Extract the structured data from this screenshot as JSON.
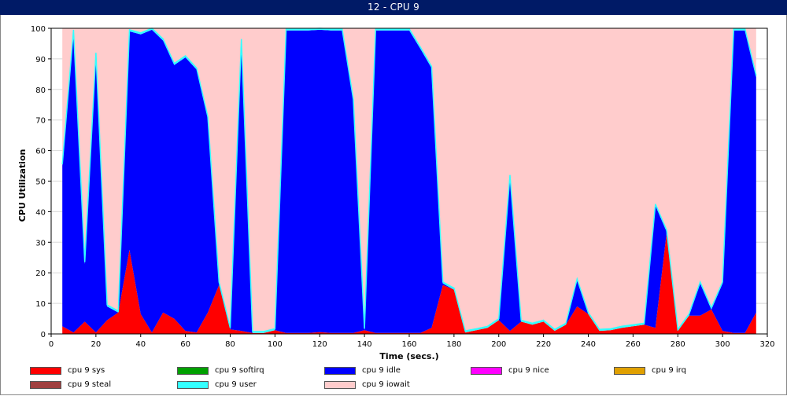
{
  "window": {
    "title": "12 - CPU 9"
  },
  "chart_data": {
    "type": "area",
    "stacked": true,
    "title": "",
    "xlabel": "Time (secs.)",
    "ylabel": "CPU Utilization",
    "xlim": [
      0,
      320
    ],
    "ylim": [
      0,
      100
    ],
    "xticks": [
      0,
      20,
      40,
      60,
      80,
      100,
      120,
      140,
      160,
      180,
      200,
      220,
      240,
      260,
      280,
      300,
      320
    ],
    "yticks": [
      0,
      10,
      20,
      30,
      40,
      50,
      60,
      70,
      80,
      90,
      100
    ],
    "grid": true,
    "legend_position": "bottom",
    "x": [
      5,
      10,
      15,
      20,
      25,
      30,
      35,
      40,
      45,
      50,
      55,
      60,
      65,
      70,
      75,
      80,
      85,
      90,
      95,
      100,
      105,
      110,
      115,
      120,
      125,
      130,
      135,
      140,
      145,
      150,
      155,
      160,
      165,
      170,
      175,
      180,
      185,
      190,
      195,
      200,
      205,
      210,
      215,
      220,
      225,
      230,
      235,
      240,
      245,
      250,
      255,
      260,
      265,
      270,
      275,
      280,
      285,
      290,
      295,
      300,
      305,
      310,
      315
    ],
    "series": [
      {
        "name": "cpu 9 sys",
        "color": "#ff0000",
        "values": [
          2.5,
          0.5,
          4,
          0.5,
          4.5,
          7,
          27.5,
          6.5,
          0.5,
          7,
          5,
          1,
          0.5,
          7,
          16,
          1.5,
          1,
          0.3,
          0.3,
          1.2,
          0.3,
          0.3,
          0.3,
          0.6,
          0.3,
          0.3,
          0.3,
          1.2,
          0.3,
          0.3,
          0.3,
          0.3,
          0.3,
          2,
          16,
          14.5,
          0.5,
          1.2,
          2,
          4.5,
          1,
          4,
          3,
          4,
          1,
          3,
          9,
          6.5,
          1,
          1.2,
          2,
          2.5,
          3,
          2,
          33,
          1,
          6,
          6,
          8,
          1,
          0.3,
          0.3,
          7
        ]
      },
      {
        "name": "cpu 9 softirq",
        "color": "#00a000",
        "values": [
          0,
          0,
          0,
          0,
          0,
          0,
          0,
          0,
          0,
          0,
          0,
          0,
          0,
          0,
          0,
          0,
          0,
          0,
          0,
          0,
          0,
          0,
          0,
          0,
          0,
          0,
          0,
          0,
          0,
          0,
          0,
          0,
          0,
          0,
          0,
          0,
          0,
          0,
          0,
          0,
          0,
          0,
          0,
          0,
          0,
          0,
          0,
          0,
          0,
          0,
          0,
          0,
          0,
          0,
          0,
          0,
          0,
          0,
          0,
          0,
          0,
          0,
          0
        ]
      },
      {
        "name": "cpu 9 idle",
        "color": "#0000ff",
        "values": [
          52.5,
          98.5,
          19,
          91,
          4.5,
          0,
          71.5,
          91.5,
          99,
          89,
          83,
          89.5,
          86,
          63.5,
          0.5,
          0,
          95,
          0,
          0,
          0,
          99,
          99,
          99,
          98.9,
          99,
          99,
          76,
          0,
          99,
          99,
          99,
          99,
          93,
          85,
          0.5,
          0,
          0,
          0,
          0,
          0,
          50.5,
          0,
          0,
          0,
          0,
          0,
          8.5,
          0,
          0,
          0,
          0,
          0,
          0,
          40,
          0.5,
          0,
          0,
          10.5,
          0,
          15.5,
          99,
          99,
          77
        ]
      },
      {
        "name": "cpu 9 nice",
        "color": "#ff00ff",
        "values": [
          0,
          0,
          0,
          0,
          0,
          0,
          0,
          0,
          0,
          0,
          0,
          0,
          0,
          0,
          0,
          0,
          0,
          0,
          0,
          0,
          0,
          0,
          0,
          0,
          0,
          0,
          0,
          0,
          0,
          0,
          0,
          0,
          0,
          0,
          0,
          0,
          0,
          0,
          0,
          0,
          0,
          0,
          0,
          0,
          0,
          0,
          0,
          0,
          0,
          0,
          0,
          0,
          0,
          0,
          0,
          0,
          0,
          0,
          0,
          0,
          0,
          0,
          0
        ]
      },
      {
        "name": "cpu 9 irq",
        "color": "#e0a000",
        "values": [
          0,
          0,
          0,
          0,
          0,
          0,
          0,
          0,
          0,
          0,
          0,
          0,
          0,
          0,
          0,
          0,
          0,
          0,
          0,
          0,
          0,
          0,
          0,
          0,
          0,
          0,
          0,
          0,
          0,
          0,
          0,
          0,
          0,
          0,
          0,
          0,
          0,
          0,
          0,
          0,
          0,
          0,
          0,
          0,
          0,
          0,
          0,
          0,
          0,
          0,
          0,
          0,
          0,
          0,
          0,
          0,
          0,
          0,
          0,
          0,
          0,
          0,
          0
        ]
      },
      {
        "name": "cpu 9 steal",
        "color": "#a04040",
        "values": [
          0,
          0,
          0,
          0,
          0,
          0,
          0,
          0,
          0,
          0,
          0,
          0,
          0,
          0,
          0,
          0,
          0,
          0,
          0,
          0,
          0,
          0,
          0,
          0,
          0,
          0,
          0,
          0,
          0,
          0,
          0,
          0,
          0,
          0,
          0,
          0,
          0,
          0,
          0,
          0,
          0,
          0,
          0,
          0,
          0,
          0,
          0,
          0,
          0,
          0,
          0,
          0,
          0,
          0,
          0,
          0,
          0,
          0,
          0,
          0,
          0,
          0,
          0
        ]
      },
      {
        "name": "cpu 9 user",
        "color": "#33ffff",
        "values": [
          0.5,
          0.5,
          0.5,
          0.5,
          0.5,
          0.5,
          0.5,
          0.5,
          0.5,
          0.5,
          0.5,
          0.5,
          0.5,
          0.5,
          0.5,
          0.5,
          0.5,
          0.5,
          0.5,
          0.5,
          0.5,
          0.5,
          0.5,
          0.5,
          0.5,
          0.5,
          0.5,
          0.5,
          0.5,
          0.5,
          0.5,
          0.5,
          0.5,
          0.5,
          0.5,
          0.5,
          0.5,
          0.5,
          0.5,
          0.5,
          0.5,
          0.5,
          0.5,
          0.5,
          0.5,
          0.5,
          0.5,
          0.5,
          0.5,
          0.5,
          0.5,
          0.5,
          0.5,
          0.5,
          0.5,
          0.5,
          0.5,
          0.5,
          0.5,
          0.5,
          0.5,
          0.5,
          0.5
        ]
      },
      {
        "name": "cpu 9 iowait",
        "color": "#ffcccc",
        "values": [
          44.5,
          0.5,
          76.5,
          8,
          90.5,
          92.5,
          0.5,
          1.5,
          0,
          3.5,
          11.5,
          9,
          13,
          29,
          83,
          98,
          3.5,
          99.2,
          99.2,
          98.3,
          0.2,
          0.2,
          0.2,
          0,
          0.2,
          0.2,
          23.2,
          98.3,
          0.2,
          0.2,
          0.2,
          0.2,
          6.2,
          12.5,
          83,
          85,
          99.5,
          98.3,
          97.5,
          95,
          48,
          95.5,
          96.5,
          95.5,
          98.5,
          96.5,
          82,
          93,
          98.5,
          98.3,
          97.5,
          97,
          96.5,
          57.5,
          66,
          98.5,
          93.5,
          83,
          91.5,
          83,
          0.2,
          0.2,
          15.5
        ]
      }
    ]
  }
}
